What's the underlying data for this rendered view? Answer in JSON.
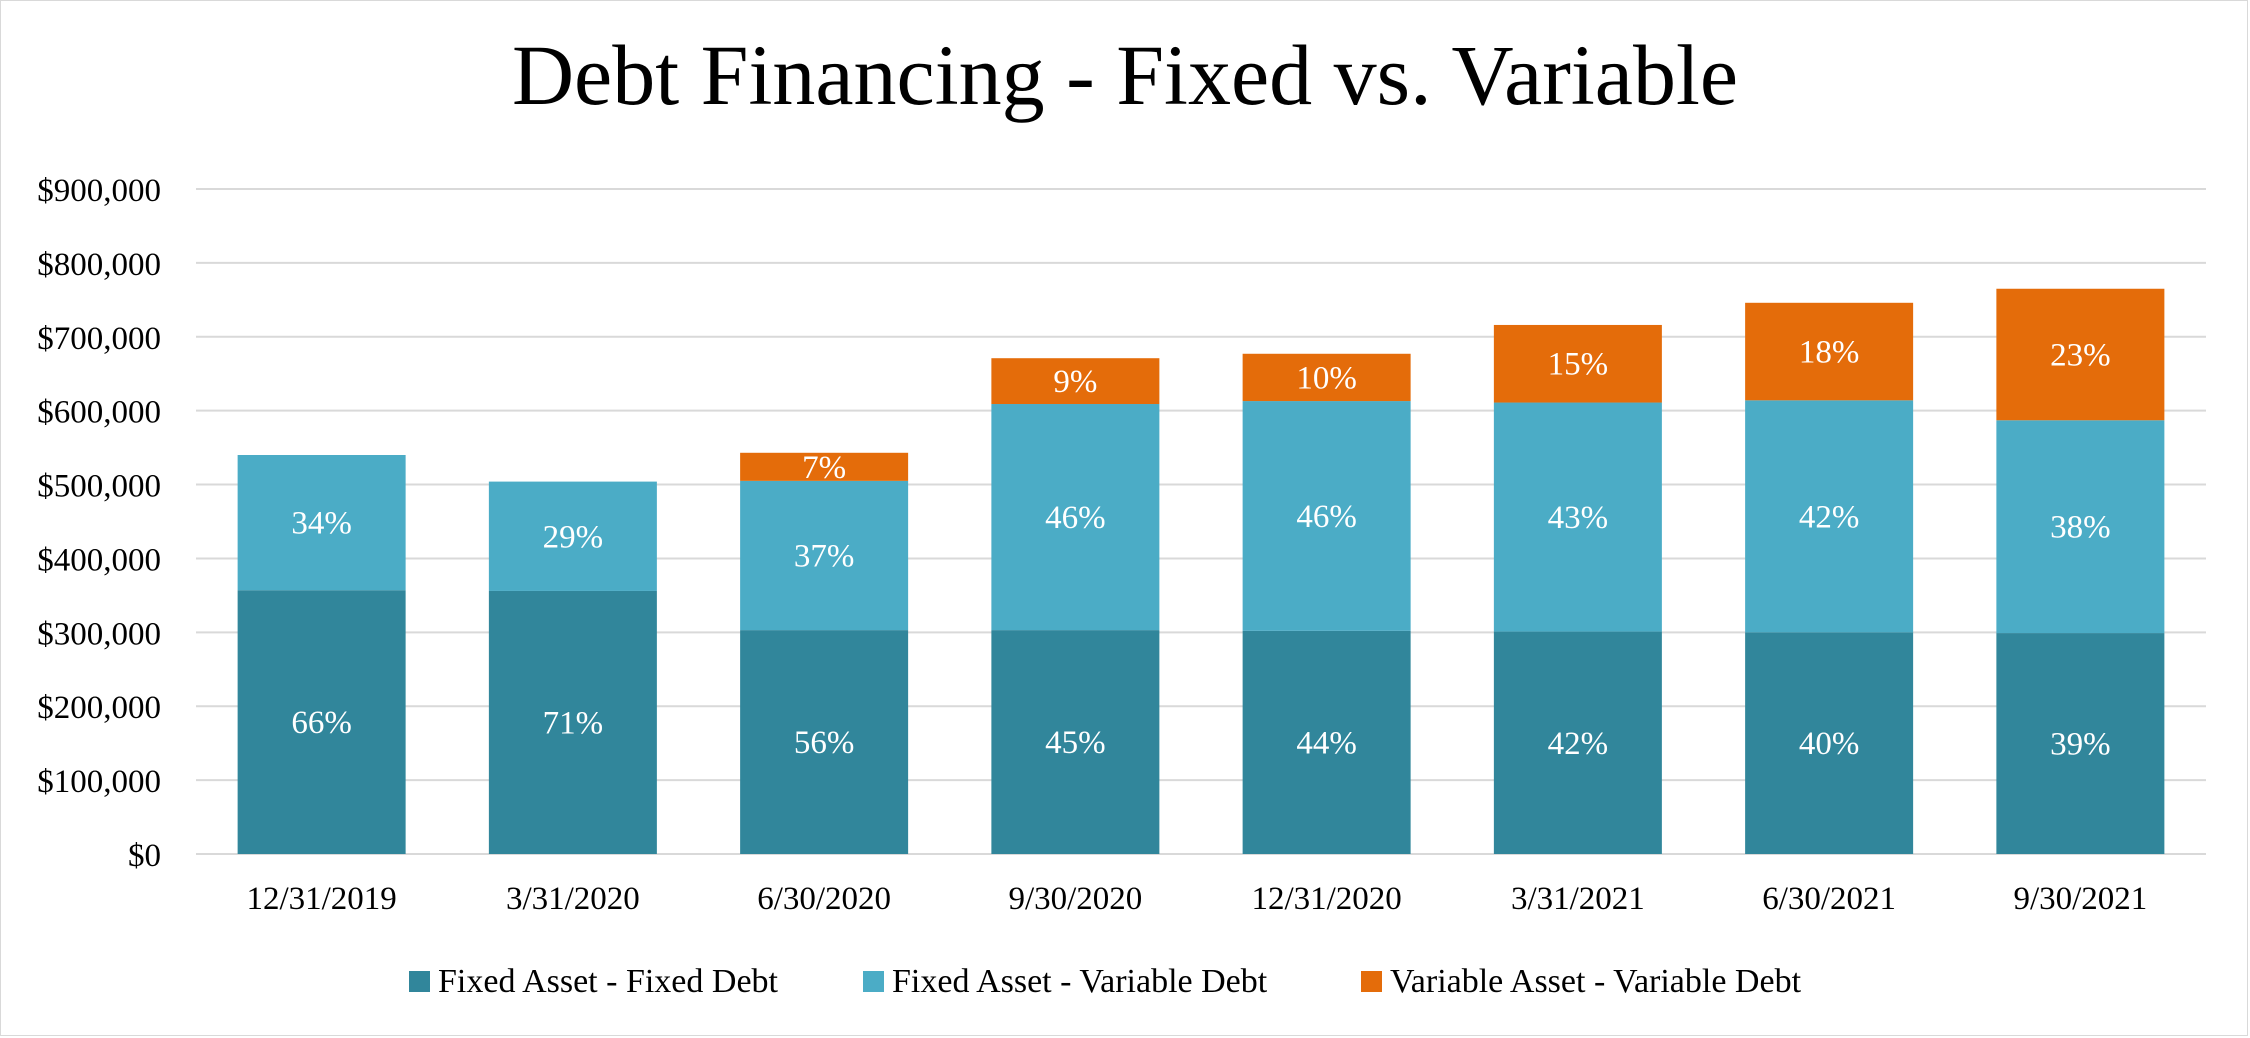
{
  "chart_data": {
    "type": "bar",
    "stacked": true,
    "title": "Debt Financing - Fixed vs. Variable",
    "xlabel": "",
    "ylabel": "",
    "ylim": [
      0,
      900000
    ],
    "yticks": [
      0,
      100000,
      200000,
      300000,
      400000,
      500000,
      600000,
      700000,
      800000,
      900000
    ],
    "ytick_labels": [
      "$0",
      "$100,000",
      "$200,000",
      "$300,000",
      "$400,000",
      "$500,000",
      "$600,000",
      "$700,000",
      "$800,000",
      "$900,000"
    ],
    "grid": true,
    "legend_position": "bottom",
    "categories": [
      "12/31/2019",
      "3/31/2020",
      "6/30/2020",
      "9/30/2020",
      "12/31/2020",
      "3/31/2021",
      "6/30/2021",
      "9/30/2021"
    ],
    "series": [
      {
        "name": "Fixed Asset - Fixed Debt",
        "color": "#31869b",
        "values": [
          357000,
          356000,
          303000,
          303000,
          302000,
          301000,
          300000,
          299000
        ],
        "labels": [
          "66%",
          "71%",
          "56%",
          "45%",
          "44%",
          "42%",
          "40%",
          "39%"
        ]
      },
      {
        "name": "Fixed Asset - Variable Debt",
        "color": "#4bacc6",
        "values": [
          183000,
          148000,
          202000,
          306000,
          311000,
          310000,
          314000,
          288000
        ],
        "labels": [
          "34%",
          "29%",
          "37%",
          "46%",
          "46%",
          "43%",
          "42%",
          "38%"
        ]
      },
      {
        "name": "Variable Asset - Variable Debt",
        "color": "#e46c0a",
        "values": [
          0,
          0,
          38000,
          62000,
          64000,
          105000,
          132000,
          178000
        ],
        "labels": [
          "",
          "",
          "7%",
          "9%",
          "10%",
          "15%",
          "18%",
          "23%"
        ]
      }
    ],
    "label_color": "#ffffff"
  }
}
